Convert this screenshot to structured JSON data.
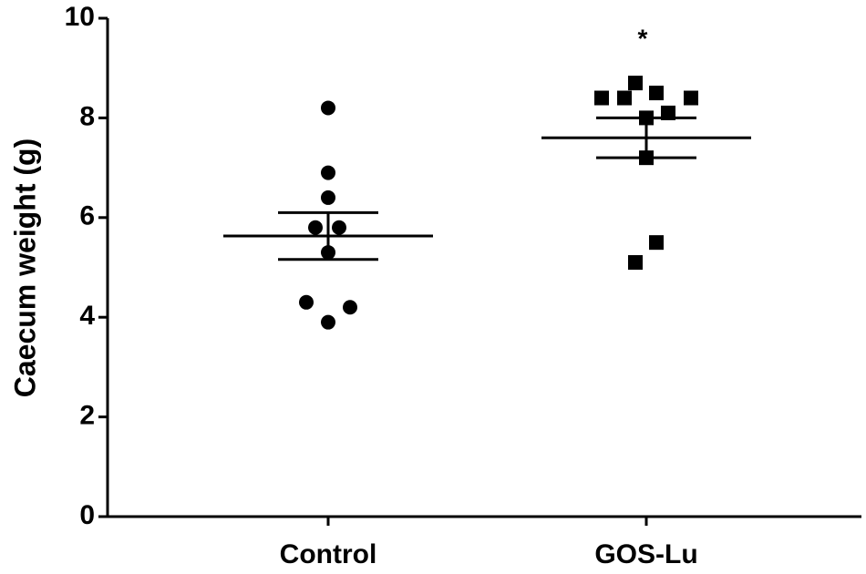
{
  "chart_data": {
    "type": "dot",
    "ylabel": "Caecum weight (g)",
    "categories": [
      "Control",
      "GOS-Lu"
    ],
    "groups": [
      {
        "values": [
          8.2,
          6.9,
          6.4,
          5.8,
          5.8,
          5.3,
          4.3,
          4.2,
          3.9
        ],
        "mean": 5.63,
        "sem": 0.47,
        "marker": "circle"
      },
      {
        "values": [
          8.4,
          8.4,
          8.7,
          8.5,
          8.4,
          8.0,
          8.1,
          7.2,
          5.5,
          5.1
        ],
        "mean": 7.6,
        "sem": 0.4,
        "marker": "square"
      }
    ],
    "annotation": "*",
    "color": "#000000",
    "ylim": [
      0,
      10
    ],
    "yticks": [
      0,
      2,
      4,
      6,
      8,
      10
    ]
  }
}
